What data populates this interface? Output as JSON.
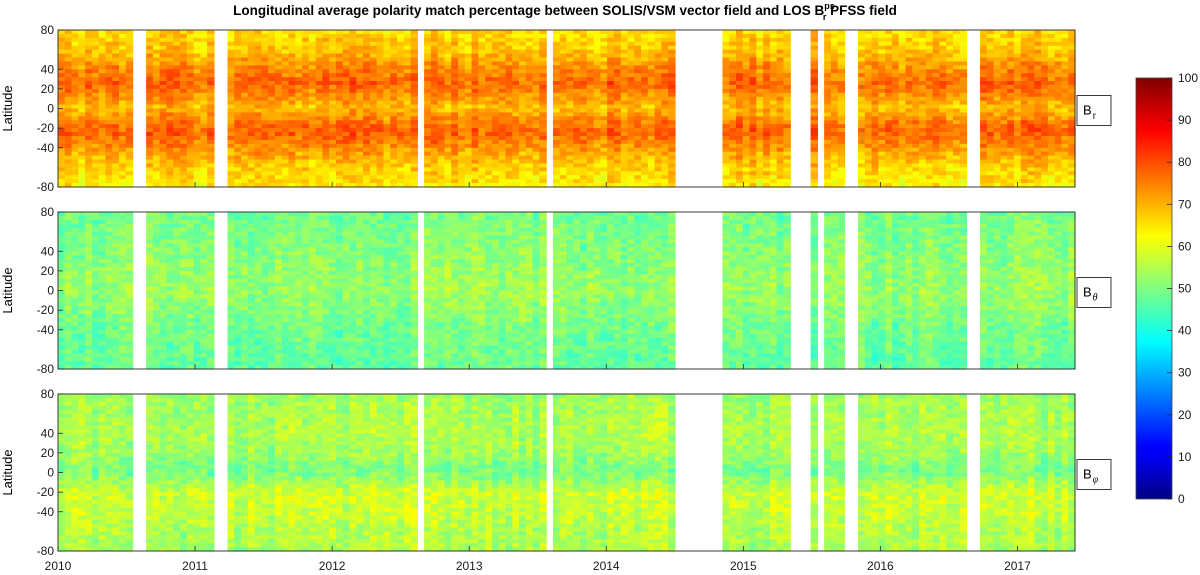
{
  "chart_data": {
    "type": "heatmap",
    "title": "Longitudinal average polarity match percentage between SOLIS/VSM vector field and LOS ",
    "title_symbol": {
      "base": "B",
      "sup": "ps",
      "sub": "r"
    },
    "title_tail": " PFSS field",
    "xlabel": "",
    "xlim": [
      2010.0,
      2017.42
    ],
    "xticks": [
      "2010",
      "2011",
      "2012",
      "2013",
      "2014",
      "2015",
      "2016",
      "2017"
    ],
    "xtick_values": [
      2010,
      2011,
      2012,
      2013,
      2014,
      2015,
      2016,
      2017
    ],
    "ylabel": "Latitude",
    "ylim": [
      -80,
      80
    ],
    "yticks": [
      "80",
      "40",
      "20",
      "0",
      "-20",
      "-40",
      "-80"
    ],
    "ytick_values": [
      80,
      40,
      20,
      0,
      -20,
      -40,
      -80
    ],
    "colorbar": {
      "range": [
        0,
        100
      ],
      "colormap": "jet",
      "ticks": [
        "100",
        "90",
        "80",
        "70",
        "60",
        "50",
        "40",
        "30",
        "20",
        "10",
        "0"
      ],
      "tick_values": [
        100,
        90,
        80,
        70,
        60,
        50,
        40,
        30,
        20,
        10,
        0
      ]
    },
    "data_gaps_years": [
      [
        2010.55,
        2010.62
      ],
      [
        2011.15,
        2011.22
      ],
      [
        2012.6,
        2012.68
      ],
      [
        2013.55,
        2013.62
      ],
      [
        2014.5,
        2014.85
      ],
      [
        2015.32,
        2015.48
      ],
      [
        2015.55,
        2015.6
      ],
      [
        2015.72,
        2015.85
      ],
      [
        2016.62,
        2016.75
      ]
    ],
    "series": [
      {
        "name": "B_r",
        "label_base": "B",
        "label_sub": "r",
        "mean_percent": 71,
        "latitude_profile": {
          "lats": [
            -80,
            -60,
            -40,
            -25,
            -15,
            0,
            15,
            25,
            40,
            60,
            80
          ],
          "values": [
            64,
            67,
            73,
            78,
            76,
            69,
            74,
            78,
            74,
            68,
            66
          ]
        }
      },
      {
        "name": "B_theta",
        "label_base": "B",
        "label_sub": "θ",
        "mean_percent": 51,
        "latitude_profile": {
          "lats": [
            -80,
            -60,
            -40,
            -20,
            0,
            20,
            40,
            60,
            80
          ],
          "values": [
            47,
            48,
            49,
            51,
            53,
            52,
            51,
            50,
            49
          ]
        }
      },
      {
        "name": "B_phi",
        "label_base": "B",
        "label_sub": "φ",
        "mean_percent": 54,
        "latitude_profile": {
          "lats": [
            -80,
            -60,
            -40,
            -20,
            0,
            20,
            40,
            60,
            80
          ],
          "values": [
            54,
            55,
            57,
            58,
            49,
            53,
            55,
            54,
            53
          ]
        }
      }
    ]
  }
}
